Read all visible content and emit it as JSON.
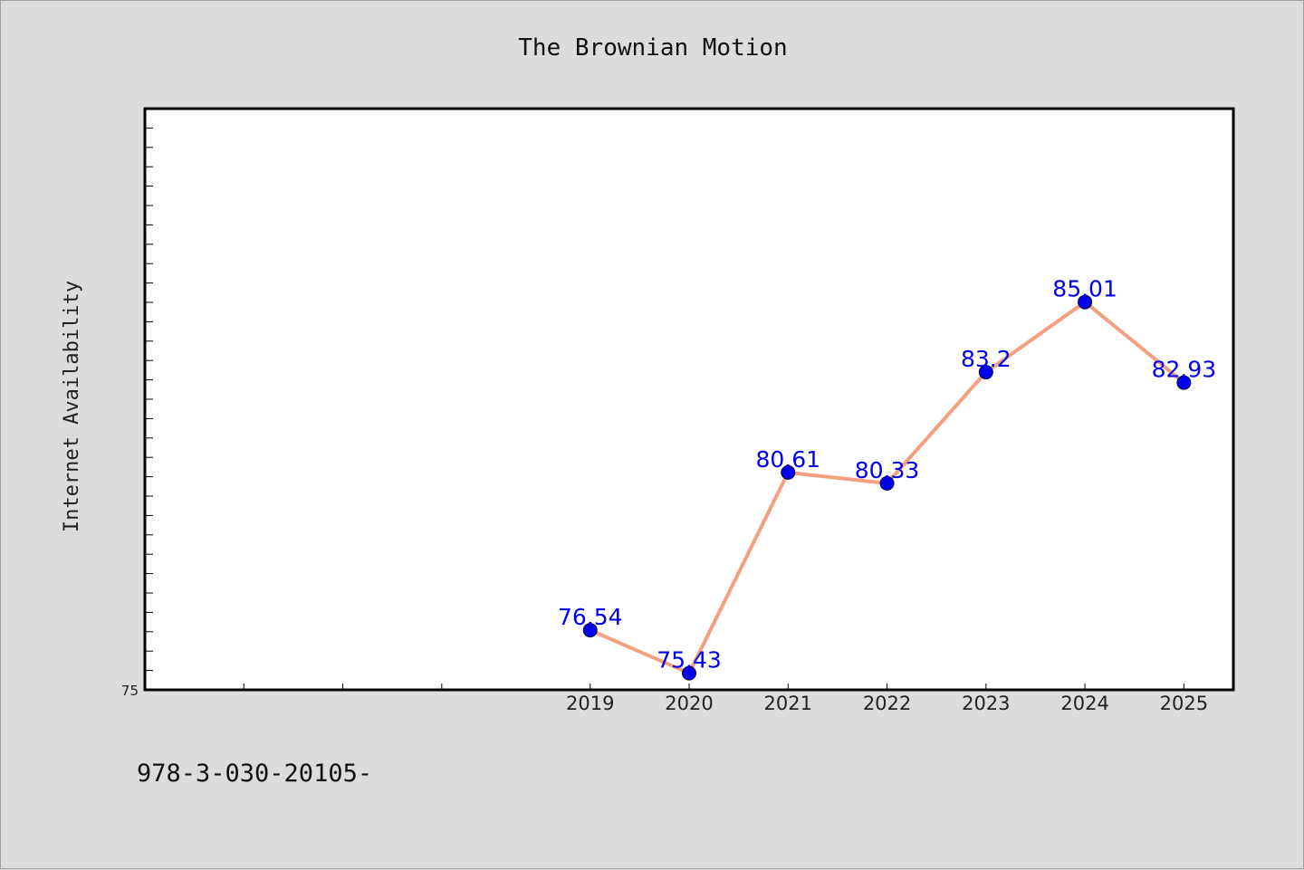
{
  "chart_data": {
    "type": "line",
    "title": "The Brownian Motion",
    "ylabel": "Internet Availability",
    "xlabel": "",
    "x": [
      "2019",
      "2020",
      "2021",
      "2022",
      "2023",
      "2024",
      "2025"
    ],
    "values": [
      76.54,
      75.43,
      80.61,
      80.33,
      83.2,
      85.01,
      82.93
    ],
    "data_labels": [
      "76.54",
      "75.43",
      "80.61",
      "80.33",
      "83.2",
      "85.01",
      "82.93"
    ],
    "yticks_labeled": [
      {
        "value": 75,
        "label": "75"
      }
    ],
    "ylim": [
      75,
      90
    ],
    "x_minor_ticks": [
      2015.5,
      2016.5,
      2017.5
    ],
    "xlim": [
      2014.5,
      2025.5
    ],
    "grid": false,
    "line_color": "#f4a07e",
    "marker_color": "#0000ee",
    "label_color": "#0000ee"
  },
  "footnote": "978-3-030-20105-"
}
